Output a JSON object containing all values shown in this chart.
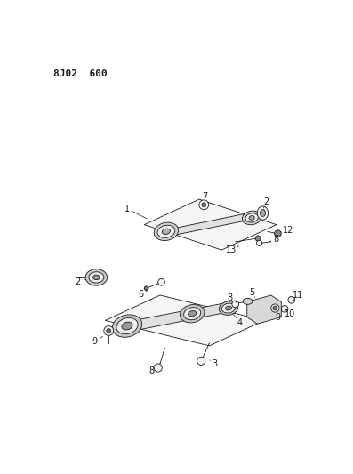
{
  "title": "8J02  600",
  "bg_color": "#ffffff",
  "line_color": "#1a1a1a",
  "title_fontsize": 8,
  "label_fontsize": 7,
  "fig_width": 3.97,
  "fig_height": 5.33,
  "dpi": 100
}
